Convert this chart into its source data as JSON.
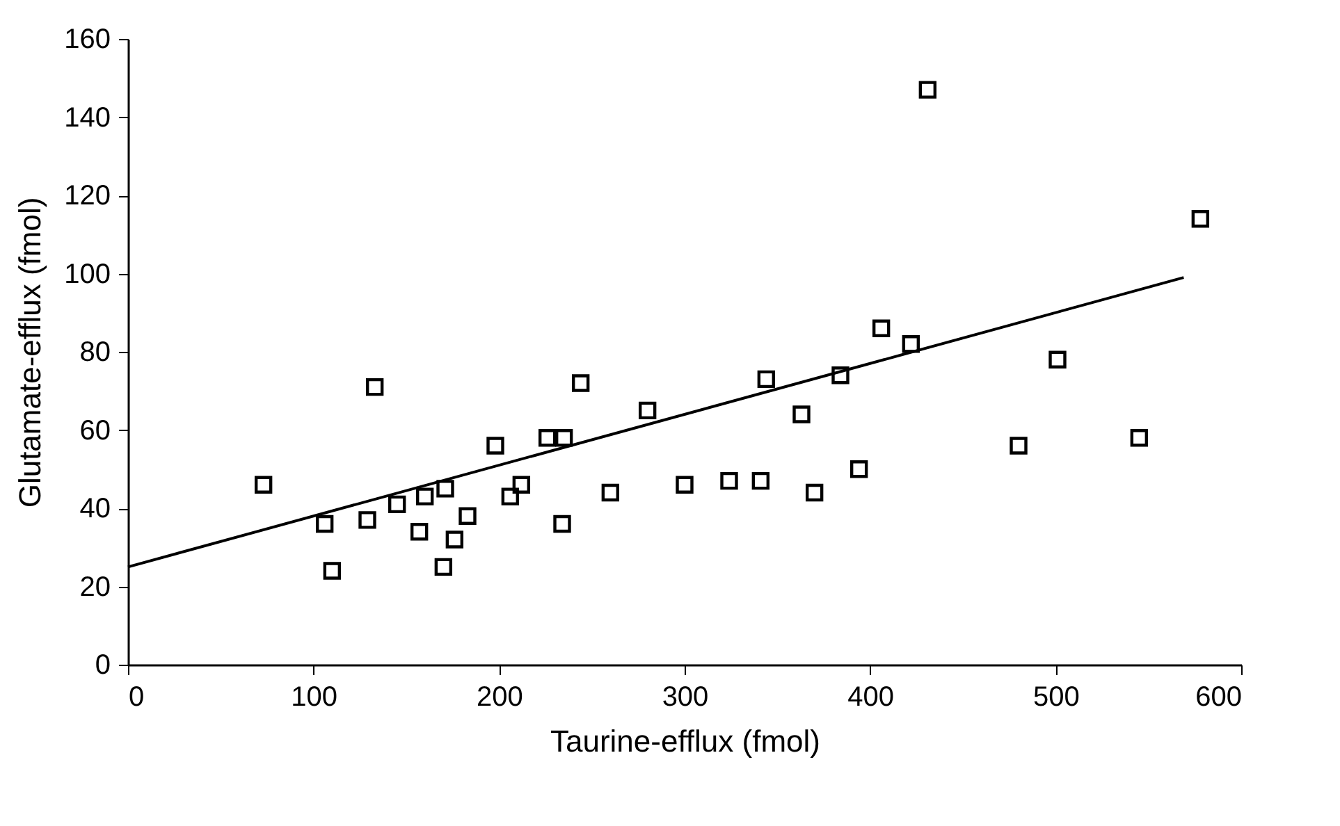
{
  "chart_data": {
    "type": "scatter",
    "xlabel": "Taurine-efflux (fmol)",
    "ylabel": "Glutamate-efflux (fmol)",
    "xlim": [
      0,
      600
    ],
    "xticks": [
      0,
      100,
      200,
      300,
      400,
      500,
      600
    ],
    "ylim": [
      0,
      160
    ],
    "yticks": [
      0,
      20,
      40,
      60,
      80,
      100,
      120,
      140,
      160
    ],
    "grid": false,
    "series": [
      {
        "marker": "square",
        "color": "#000000",
        "x": [
          73,
          106,
          110,
          129,
          133,
          145,
          157,
          160,
          170,
          171,
          176,
          183,
          198,
          206,
          212,
          226,
          234,
          235,
          244,
          260,
          280,
          300,
          324,
          341,
          344,
          363,
          370,
          384,
          394,
          406,
          422,
          431,
          480,
          501,
          545,
          578
        ],
        "values": [
          46,
          36,
          24,
          37,
          71,
          41,
          34,
          43,
          25,
          45,
          32,
          38,
          56,
          43,
          46,
          58,
          36,
          58,
          72,
          44,
          65,
          46,
          47,
          47,
          73,
          64,
          44,
          74,
          50,
          86,
          82,
          147,
          56,
          78,
          58,
          114
        ]
      },
      {
        "type": "line",
        "marker": "none",
        "color": "#000000",
        "x": [
          0,
          569
        ],
        "values": [
          25,
          99
        ]
      }
    ]
  }
}
